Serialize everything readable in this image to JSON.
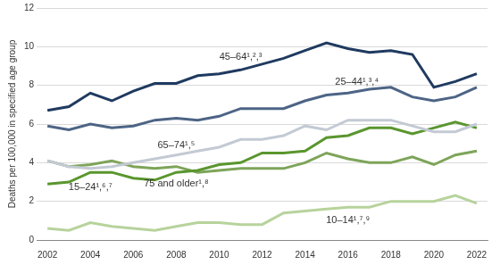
{
  "chart_data": {
    "type": "line",
    "y_label": "Deaths per 100,000 in specified age group",
    "x": [
      2002,
      2003,
      2004,
      2005,
      2006,
      2007,
      2008,
      2009,
      2010,
      2011,
      2012,
      2013,
      2014,
      2015,
      2016,
      2017,
      2018,
      2019,
      2020,
      2021,
      2022
    ],
    "xlim": [
      2001.5,
      2022.5
    ],
    "xticks": [
      2002,
      2004,
      2006,
      2008,
      2010,
      2012,
      2014,
      2016,
      2018,
      2020,
      2022
    ],
    "ylim": [
      0,
      12
    ],
    "yticks": [
      0,
      2,
      4,
      6,
      8,
      10,
      12
    ],
    "grid": true,
    "series": [
      {
        "name": "45–64¹,²,³",
        "color": "#1f3a60",
        "values": [
          6.7,
          6.9,
          7.6,
          7.2,
          7.7,
          8.1,
          8.1,
          8.5,
          8.6,
          8.8,
          9.1,
          9.4,
          9.8,
          10.2,
          9.9,
          9.7,
          9.8,
          9.6,
          7.9,
          8.2,
          8.6
        ]
      },
      {
        "name": "25–44¹,³,⁴",
        "color": "#4d6485",
        "values": [
          5.9,
          5.7,
          6.0,
          5.8,
          5.9,
          6.2,
          6.3,
          6.2,
          6.4,
          6.8,
          6.8,
          6.8,
          7.2,
          7.5,
          7.6,
          7.8,
          7.9,
          7.4,
          7.2,
          7.4,
          7.9
        ]
      },
      {
        "name": "65–74¹,⁵",
        "color": "#c3cad4",
        "values": [
          4.1,
          3.8,
          3.7,
          3.8,
          4.0,
          4.2,
          4.4,
          4.6,
          4.8,
          5.2,
          5.2,
          5.4,
          5.9,
          5.7,
          6.2,
          6.2,
          6.2,
          5.9,
          5.6,
          5.6,
          6.0
        ]
      },
      {
        "name": "15–24¹,⁶,⁷",
        "color": "#5a962e",
        "values": [
          2.9,
          3.0,
          3.5,
          3.5,
          3.2,
          3.1,
          3.5,
          3.6,
          3.9,
          4.0,
          4.5,
          4.5,
          4.6,
          5.3,
          5.4,
          5.8,
          5.8,
          5.5,
          5.8,
          6.1,
          5.8
        ]
      },
      {
        "name": "75 and older¹,⁸",
        "color": "#7da459",
        "values": [
          4.1,
          3.8,
          3.9,
          4.1,
          3.8,
          3.7,
          3.8,
          3.5,
          3.6,
          3.7,
          3.7,
          3.7,
          4.0,
          4.5,
          4.2,
          4.0,
          4.0,
          4.3,
          3.9,
          4.4,
          4.6
        ]
      },
      {
        "name": "10–14¹,⁷,⁹",
        "color": "#b7d39c",
        "values": [
          0.6,
          0.5,
          0.9,
          0.7,
          0.6,
          0.5,
          0.7,
          0.9,
          0.9,
          0.8,
          0.8,
          1.4,
          1.5,
          1.6,
          1.7,
          1.7,
          2.0,
          2.0,
          2.0,
          2.3,
          1.9
        ]
      }
    ]
  }
}
